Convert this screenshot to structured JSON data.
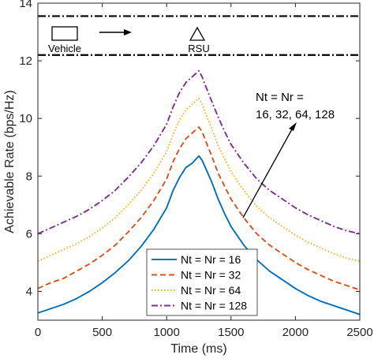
{
  "chart_data": {
    "type": "line",
    "xlabel": "Time (ms)",
    "ylabel": "Achievable Rate (bps/Hz)",
    "xlim": [
      0,
      2500
    ],
    "ylim": [
      3,
      14
    ],
    "xticks": [
      0,
      500,
      1000,
      1500,
      2000,
      2500
    ],
    "yticks": [
      4,
      6,
      8,
      10,
      12,
      14
    ],
    "grid": false,
    "legend_position": "bottom-center",
    "series": [
      {
        "name": "Nt = Nr = 16",
        "color": "#0072BD",
        "style": "solid",
        "points": [
          [
            0,
            3.25
          ],
          [
            100,
            3.4
          ],
          [
            200,
            3.55
          ],
          [
            300,
            3.75
          ],
          [
            400,
            4.0
          ],
          [
            500,
            4.3
          ],
          [
            600,
            4.65
          ],
          [
            700,
            5.05
          ],
          [
            800,
            5.55
          ],
          [
            900,
            6.15
          ],
          [
            1000,
            6.9
          ],
          [
            1050,
            7.5
          ],
          [
            1100,
            7.95
          ],
          [
            1150,
            8.3
          ],
          [
            1200,
            8.45
          ],
          [
            1250,
            8.7
          ],
          [
            1275,
            8.55
          ],
          [
            1300,
            8.3
          ],
          [
            1350,
            7.8
          ],
          [
            1400,
            7.2
          ],
          [
            1450,
            6.7
          ],
          [
            1500,
            6.25
          ],
          [
            1600,
            5.6
          ],
          [
            1700,
            5.1
          ],
          [
            1800,
            4.7
          ],
          [
            1900,
            4.4
          ],
          [
            2000,
            4.1
          ],
          [
            2100,
            3.85
          ],
          [
            2200,
            3.65
          ],
          [
            2300,
            3.5
          ],
          [
            2400,
            3.35
          ],
          [
            2500,
            3.2
          ]
        ]
      },
      {
        "name": "Nt = Nr = 32",
        "color": "#D95319",
        "style": "dashed",
        "points": [
          [
            0,
            4.1
          ],
          [
            100,
            4.3
          ],
          [
            200,
            4.45
          ],
          [
            300,
            4.7
          ],
          [
            400,
            4.95
          ],
          [
            500,
            5.25
          ],
          [
            600,
            5.6
          ],
          [
            700,
            6.05
          ],
          [
            800,
            6.55
          ],
          [
            900,
            7.15
          ],
          [
            1000,
            7.9
          ],
          [
            1050,
            8.5
          ],
          [
            1100,
            8.95
          ],
          [
            1150,
            9.3
          ],
          [
            1200,
            9.5
          ],
          [
            1250,
            9.7
          ],
          [
            1275,
            9.55
          ],
          [
            1300,
            9.25
          ],
          [
            1350,
            8.7
          ],
          [
            1400,
            8.1
          ],
          [
            1450,
            7.65
          ],
          [
            1500,
            7.2
          ],
          [
            1600,
            6.55
          ],
          [
            1700,
            6.0
          ],
          [
            1800,
            5.6
          ],
          [
            1900,
            5.3
          ],
          [
            2000,
            5.0
          ],
          [
            2100,
            4.75
          ],
          [
            2200,
            4.55
          ],
          [
            2300,
            4.35
          ],
          [
            2400,
            4.2
          ],
          [
            2500,
            4.05
          ]
        ]
      },
      {
        "name": "Nt = Nr = 64",
        "color": "#EDB120",
        "style": "dotted",
        "points": [
          [
            0,
            5.05
          ],
          [
            100,
            5.25
          ],
          [
            200,
            5.45
          ],
          [
            300,
            5.65
          ],
          [
            400,
            5.9
          ],
          [
            500,
            6.2
          ],
          [
            600,
            6.55
          ],
          [
            700,
            7.0
          ],
          [
            800,
            7.5
          ],
          [
            900,
            8.1
          ],
          [
            1000,
            8.85
          ],
          [
            1050,
            9.45
          ],
          [
            1100,
            9.95
          ],
          [
            1150,
            10.3
          ],
          [
            1200,
            10.5
          ],
          [
            1250,
            10.7
          ],
          [
            1275,
            10.5
          ],
          [
            1300,
            10.2
          ],
          [
            1350,
            9.65
          ],
          [
            1400,
            9.05
          ],
          [
            1450,
            8.6
          ],
          [
            1500,
            8.15
          ],
          [
            1600,
            7.5
          ],
          [
            1700,
            6.95
          ],
          [
            1800,
            6.55
          ],
          [
            1900,
            6.25
          ],
          [
            2000,
            5.95
          ],
          [
            2100,
            5.7
          ],
          [
            2200,
            5.5
          ],
          [
            2300,
            5.3
          ],
          [
            2400,
            5.15
          ],
          [
            2500,
            5.05
          ]
        ]
      },
      {
        "name": "Nt = Nr = 128",
        "color": "#7E2F8E",
        "style": "dashdot",
        "points": [
          [
            0,
            6.0
          ],
          [
            100,
            6.2
          ],
          [
            200,
            6.4
          ],
          [
            300,
            6.6
          ],
          [
            400,
            6.85
          ],
          [
            500,
            7.15
          ],
          [
            600,
            7.5
          ],
          [
            700,
            7.95
          ],
          [
            800,
            8.45
          ],
          [
            900,
            9.05
          ],
          [
            1000,
            9.8
          ],
          [
            1050,
            10.4
          ],
          [
            1100,
            10.9
          ],
          [
            1150,
            11.25
          ],
          [
            1200,
            11.45
          ],
          [
            1250,
            11.65
          ],
          [
            1275,
            11.45
          ],
          [
            1300,
            11.15
          ],
          [
            1350,
            10.6
          ],
          [
            1400,
            10.05
          ],
          [
            1450,
            9.55
          ],
          [
            1500,
            9.1
          ],
          [
            1600,
            8.45
          ],
          [
            1700,
            7.9
          ],
          [
            1800,
            7.5
          ],
          [
            1900,
            7.2
          ],
          [
            2000,
            6.9
          ],
          [
            2100,
            6.65
          ],
          [
            2200,
            6.45
          ],
          [
            2300,
            6.25
          ],
          [
            2400,
            6.1
          ],
          [
            2500,
            6.0
          ]
        ]
      }
    ],
    "road_lines_y": [
      13.55,
      12.2
    ],
    "scene": {
      "vehicle_label": "Vehicle",
      "rsu_label": "RSU"
    },
    "annotation": {
      "line1": "Nt = Nr =",
      "line2": "16, 32, 64, 128"
    }
  }
}
